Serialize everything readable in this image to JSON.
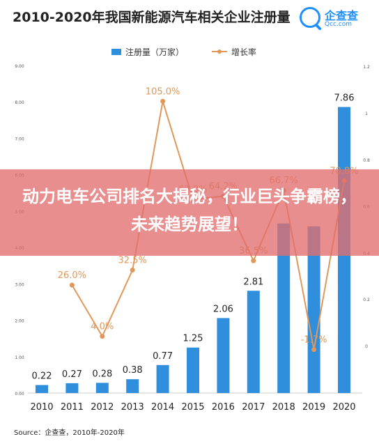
{
  "header": {
    "title": "2010-2020年我国新能源汽车相关企业注册量",
    "logo_name": "企查查",
    "logo_url": "Qcc.com"
  },
  "legend": {
    "bar_label": "注册量（万家）",
    "line_label": "增长率"
  },
  "overlay": {
    "headline": "动力电车公司排名大揭秘，行业巨头争霸榜，未来趋势展望！"
  },
  "source": "Source：企查查，2010年-2020年",
  "colors": {
    "bar": "#2f8fdc",
    "line": "#e0985a",
    "banner": "#e26e6e"
  },
  "chart_data": {
    "type": "bar",
    "categories": [
      "2010",
      "2011",
      "2012",
      "2013",
      "2014",
      "2015",
      "2016",
      "2017",
      "2018",
      "2019",
      "2020"
    ],
    "series": [
      {
        "name": "注册量（万家）",
        "type": "bar",
        "axis": "left",
        "values": [
          0.22,
          0.27,
          0.28,
          0.38,
          0.77,
          1.25,
          2.06,
          2.81,
          4.66,
          4.58,
          7.86
        ],
        "labels": [
          "0.22",
          "0.27",
          "0.28",
          "0.38",
          "0.77",
          "1.25",
          "2.06",
          "2.81",
          "",
          "",
          "7.86"
        ]
      },
      {
        "name": "增长率",
        "type": "line",
        "axis": "right",
        "values": [
          null,
          26.0,
          4.0,
          32.5,
          105.0,
          62.8,
          64.2,
          36.5,
          66.7,
          -1.7,
          70.8
        ],
        "labels": [
          "",
          "26.0%",
          "4.0%",
          "32.5%",
          "105.0%",
          "62.8%",
          "64.2%",
          "36.5%",
          "66.7%",
          "-1.7%",
          "70.8%"
        ]
      }
    ],
    "yleft": {
      "ticks": [
        "0.00",
        "1.00",
        "2.00",
        "3.00",
        "4.00",
        "5.00",
        "6.00",
        "7.00",
        "8.00",
        "9.00"
      ],
      "ylim": [
        0,
        9
      ]
    },
    "yright": {
      "ticks": [
        "0",
        "0.2",
        "0.4",
        "0.6",
        "0.8",
        "1",
        "1.2"
      ],
      "ylim": [
        -0.1,
        1.2
      ]
    },
    "grid": false,
    "legend_position": "top"
  }
}
